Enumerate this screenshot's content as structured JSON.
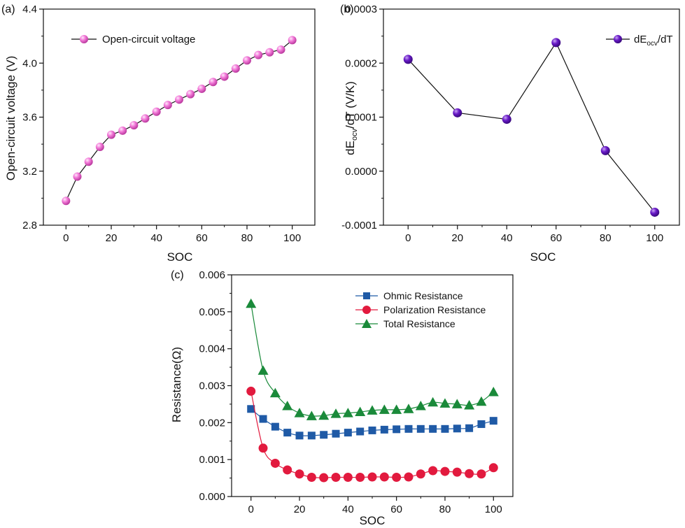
{
  "chart_data": [
    {
      "type": "line",
      "panel_label": "(a)",
      "title": "",
      "xlabel": "SOC",
      "ylabel": "Open-circuit voltage (V)",
      "xlim": [
        -10,
        110
      ],
      "ylim": [
        2.8,
        4.4
      ],
      "xticks": [
        "0",
        "20",
        "40",
        "60",
        "80",
        "100"
      ],
      "yticks": [
        "2.8",
        "3.2",
        "3.6",
        "4.0",
        "4.4"
      ],
      "grid": false,
      "legend_position": "top-left",
      "series": [
        {
          "name": "Open-circuit voltage",
          "color": "#f27ad8",
          "marker": "sphere",
          "x": [
            0,
            5,
            10,
            15,
            20,
            25,
            30,
            35,
            40,
            45,
            50,
            55,
            60,
            65,
            70,
            75,
            80,
            85,
            90,
            95,
            100
          ],
          "values": [
            2.98,
            3.16,
            3.27,
            3.38,
            3.47,
            3.5,
            3.54,
            3.59,
            3.64,
            3.69,
            3.73,
            3.77,
            3.81,
            3.86,
            3.9,
            3.96,
            4.02,
            4.06,
            4.08,
            4.1,
            4.17
          ]
        }
      ]
    },
    {
      "type": "line",
      "panel_label": "(b)",
      "title": "",
      "xlabel": "SOC",
      "ylabel_main": "dE",
      "ylabel_sub": "ocv",
      "ylabel_rest": "/dT (V/K)",
      "xlim": [
        -10,
        110
      ],
      "ylim": [
        -0.0001,
        0.0003
      ],
      "xticks": [
        "0",
        "20",
        "40",
        "60",
        "80",
        "100"
      ],
      "yticks": [
        "-0.0001",
        "0.0000",
        "0.0001",
        "0.0002",
        "0.0003"
      ],
      "grid": false,
      "legend_position": "top-right",
      "series": [
        {
          "name_main": "dE",
          "name_sub": "ocv",
          "name_rest": "/dT",
          "color": "#6a1bc9",
          "marker": "sphere",
          "x": [
            0,
            20,
            40,
            60,
            80,
            100
          ],
          "values": [
            0.000207,
            0.000108,
            9.6e-05,
            0.000238,
            3.8e-05,
            -7.6e-05
          ]
        }
      ]
    },
    {
      "type": "line",
      "panel_label": "(c)",
      "title": "",
      "xlabel": "SOC",
      "ylabel": "Resistance(Ω)",
      "xlim": [
        -8,
        108
      ],
      "ylim": [
        0,
        0.006
      ],
      "xticks": [
        "0",
        "20",
        "40",
        "60",
        "80",
        "100"
      ],
      "yticks": [
        "0.000",
        "0.001",
        "0.002",
        "0.003",
        "0.004",
        "0.005",
        "0.006"
      ],
      "grid": false,
      "legend_position": "top-right",
      "series": [
        {
          "name": "Ohmic Resistance",
          "color": "#1f5aa6",
          "marker": "square",
          "x": [
            0,
            5,
            10,
            15,
            20,
            25,
            30,
            35,
            40,
            45,
            50,
            55,
            60,
            65,
            70,
            75,
            80,
            85,
            90,
            95,
            100
          ],
          "values": [
            0.00237,
            0.0021,
            0.00189,
            0.00173,
            0.00165,
            0.00165,
            0.00167,
            0.0017,
            0.00173,
            0.00176,
            0.00179,
            0.00181,
            0.00182,
            0.00183,
            0.00183,
            0.00183,
            0.00183,
            0.00184,
            0.00185,
            0.00196,
            0.00205
          ]
        },
        {
          "name": "Polarization Resistance",
          "color": "#e21a3e",
          "marker": "circle",
          "x": [
            0,
            5,
            10,
            15,
            20,
            25,
            30,
            35,
            40,
            45,
            50,
            55,
            60,
            65,
            70,
            75,
            80,
            85,
            90,
            95,
            100
          ],
          "values": [
            0.00285,
            0.00131,
            0.0009,
            0.00072,
            0.00061,
            0.00052,
            0.00051,
            0.00052,
            0.00052,
            0.00052,
            0.00053,
            0.00053,
            0.00052,
            0.00053,
            0.00061,
            0.0007,
            0.00068,
            0.00066,
            0.00062,
            0.00061,
            0.00078
          ]
        },
        {
          "name": "Total Resistance",
          "color": "#1a8a3a",
          "marker": "triangle",
          "x": [
            0,
            5,
            10,
            15,
            20,
            25,
            30,
            35,
            40,
            45,
            50,
            55,
            60,
            65,
            70,
            75,
            80,
            85,
            90,
            95,
            100
          ],
          "values": [
            0.00522,
            0.00341,
            0.0028,
            0.00245,
            0.00226,
            0.00218,
            0.00219,
            0.00224,
            0.00226,
            0.00229,
            0.00233,
            0.00235,
            0.00235,
            0.00237,
            0.00245,
            0.00255,
            0.00252,
            0.0025,
            0.00247,
            0.00257,
            0.00283
          ]
        }
      ]
    }
  ]
}
